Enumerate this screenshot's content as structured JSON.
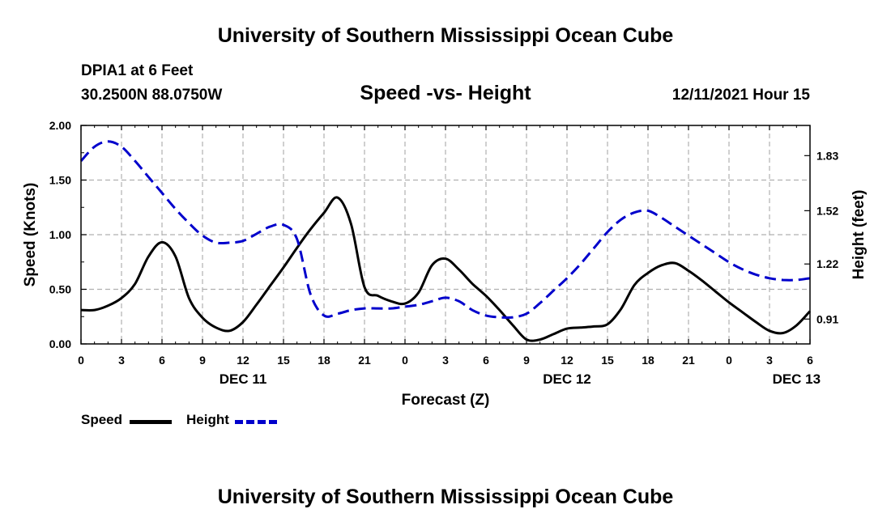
{
  "header": {
    "title": "University of Southern Mississippi Ocean Cube",
    "station": "DPIA1 at 6 Feet",
    "coordinates": "30.2500N  88.0750W",
    "chart_title": "Speed -vs- Height",
    "datetime": "12/11/2021 Hour 15"
  },
  "footer": {
    "title": "University of Southern Mississippi Ocean Cube"
  },
  "colors": {
    "speed": "#000000",
    "height": "#0000cc",
    "grid": "#b0b0b0"
  },
  "legend": [
    {
      "label": "Speed",
      "style": "solid",
      "color": "#000000"
    },
    {
      "label": "Height",
      "style": "dashed",
      "color": "#0000cc"
    }
  ],
  "chart_data": {
    "type": "line",
    "title": "Speed -vs- Height",
    "xlabel": "Forecast (Z)",
    "ylabel": "Speed (Knots)",
    "y2label": "Height (feet)",
    "grid": true,
    "x_range_hours": [
      0,
      54
    ],
    "x_ticks": [
      {
        "h": 0,
        "label": "0"
      },
      {
        "h": 3,
        "label": "3"
      },
      {
        "h": 6,
        "label": "6"
      },
      {
        "h": 9,
        "label": "9"
      },
      {
        "h": 12,
        "label": "12"
      },
      {
        "h": 15,
        "label": "15"
      },
      {
        "h": 18,
        "label": "18"
      },
      {
        "h": 21,
        "label": "21"
      },
      {
        "h": 24,
        "label": "0"
      },
      {
        "h": 27,
        "label": "3"
      },
      {
        "h": 30,
        "label": "6"
      },
      {
        "h": 33,
        "label": "9"
      },
      {
        "h": 36,
        "label": "12"
      },
      {
        "h": 39,
        "label": "15"
      },
      {
        "h": 42,
        "label": "18"
      },
      {
        "h": 45,
        "label": "21"
      },
      {
        "h": 48,
        "label": "0"
      },
      {
        "h": 51,
        "label": "3"
      },
      {
        "h": 54,
        "label": "6"
      }
    ],
    "date_labels": [
      {
        "h": 12,
        "label": "DEC 11"
      },
      {
        "h": 36,
        "label": "DEC 12"
      },
      {
        "h": 53,
        "label": "DEC 13"
      }
    ],
    "y_left": {
      "range": [
        0,
        2
      ],
      "ticks": [
        0,
        0.5,
        1.0,
        1.5,
        2.0
      ],
      "labels": [
        "0.00",
        "0.50",
        "1.00",
        "1.50",
        "2.00"
      ]
    },
    "y_right": {
      "range": [
        0.77,
        2.0
      ],
      "ticks": [
        0.91,
        1.22,
        1.52,
        1.83
      ],
      "labels": [
        "0.91",
        "1.22",
        "1.52",
        "1.83"
      ]
    },
    "series": [
      {
        "name": "Speed",
        "axis": "left",
        "x": [
          0,
          1,
          2,
          3,
          4,
          5,
          6,
          7,
          8,
          9,
          10,
          11,
          12,
          13,
          14,
          15,
          16,
          17,
          18,
          19,
          20,
          21,
          22,
          23,
          24,
          25,
          26,
          27,
          28,
          29,
          30,
          31,
          32,
          33,
          34,
          35,
          36,
          37,
          38,
          39,
          40,
          41,
          42,
          43,
          44,
          45,
          46,
          47,
          48,
          49,
          50,
          51,
          52,
          53,
          54
        ],
        "values": [
          0.31,
          0.31,
          0.35,
          0.42,
          0.55,
          0.8,
          0.93,
          0.8,
          0.42,
          0.24,
          0.15,
          0.12,
          0.2,
          0.36,
          0.53,
          0.7,
          0.88,
          1.05,
          1.2,
          1.34,
          1.1,
          0.52,
          0.44,
          0.39,
          0.37,
          0.47,
          0.72,
          0.78,
          0.68,
          0.55,
          0.44,
          0.31,
          0.17,
          0.04,
          0.04,
          0.09,
          0.14,
          0.15,
          0.16,
          0.18,
          0.32,
          0.54,
          0.65,
          0.72,
          0.74,
          0.67,
          0.58,
          0.48,
          0.38,
          0.29,
          0.2,
          0.12,
          0.1,
          0.17,
          0.3
        ]
      },
      {
        "name": "Height",
        "axis": "right",
        "x": [
          0,
          1,
          2,
          3,
          4,
          5,
          6,
          7,
          8,
          9,
          10,
          11,
          12,
          13,
          14,
          15,
          16,
          17,
          18,
          19,
          20,
          21,
          22,
          23,
          24,
          25,
          26,
          27,
          28,
          29,
          30,
          31,
          32,
          33,
          34,
          35,
          36,
          37,
          38,
          39,
          40,
          41,
          42,
          43,
          44,
          45,
          46,
          47,
          48,
          49,
          50,
          51,
          52,
          53,
          54
        ],
        "values": [
          1.8,
          1.88,
          1.91,
          1.88,
          1.8,
          1.71,
          1.62,
          1.53,
          1.45,
          1.38,
          1.34,
          1.34,
          1.35,
          1.39,
          1.43,
          1.44,
          1.36,
          1.05,
          0.93,
          0.94,
          0.96,
          0.97,
          0.97,
          0.97,
          0.98,
          0.99,
          1.01,
          1.03,
          1.01,
          0.96,
          0.93,
          0.92,
          0.92,
          0.94,
          1.0,
          1.07,
          1.14,
          1.22,
          1.31,
          1.4,
          1.47,
          1.51,
          1.52,
          1.48,
          1.43,
          1.38,
          1.33,
          1.28,
          1.23,
          1.19,
          1.16,
          1.14,
          1.13,
          1.13,
          1.14
        ]
      }
    ]
  }
}
